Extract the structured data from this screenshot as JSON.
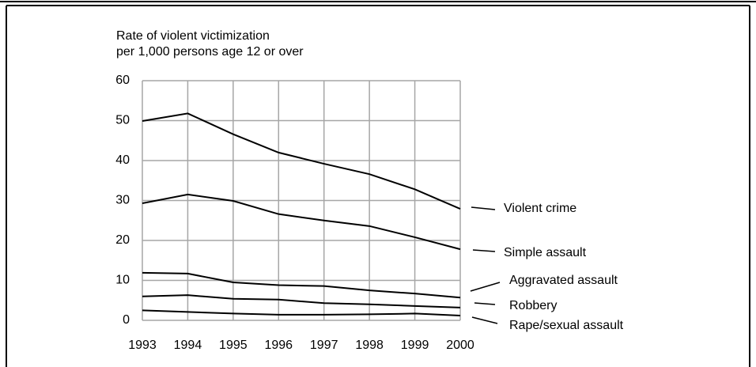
{
  "chart_data": {
    "type": "line",
    "ylabel": [
      "Rate of violent victimization",
      "per 1,000 persons age 12 or over"
    ],
    "x": [
      1993,
      1994,
      1995,
      1996,
      1997,
      1998,
      1999,
      2000
    ],
    "xlim": [
      1993,
      2000
    ],
    "ylim": [
      0,
      60
    ],
    "yticks": [
      0,
      10,
      20,
      30,
      40,
      50,
      60
    ],
    "grid": true,
    "series": [
      {
        "name": "Violent crime",
        "color": "#000000",
        "values": [
          49.9,
          51.8,
          46.6,
          42.0,
          39.2,
          36.6,
          32.8,
          27.9
        ]
      },
      {
        "name": "Simple assault",
        "color": "#000000",
        "values": [
          29.3,
          31.5,
          29.9,
          26.6,
          25.0,
          23.6,
          20.8,
          17.8
        ]
      },
      {
        "name": "Aggravated assault",
        "color": "#000000",
        "values": [
          11.9,
          11.7,
          9.5,
          8.8,
          8.6,
          7.5,
          6.7,
          5.7
        ]
      },
      {
        "name": "Robbery",
        "color": "#000000",
        "values": [
          6.0,
          6.3,
          5.4,
          5.2,
          4.3,
          4.0,
          3.6,
          3.2
        ]
      },
      {
        "name": "Rape/sexual assault",
        "color": "#000000",
        "values": [
          2.5,
          2.1,
          1.7,
          1.4,
          1.4,
          1.5,
          1.7,
          1.2
        ]
      }
    ]
  }
}
